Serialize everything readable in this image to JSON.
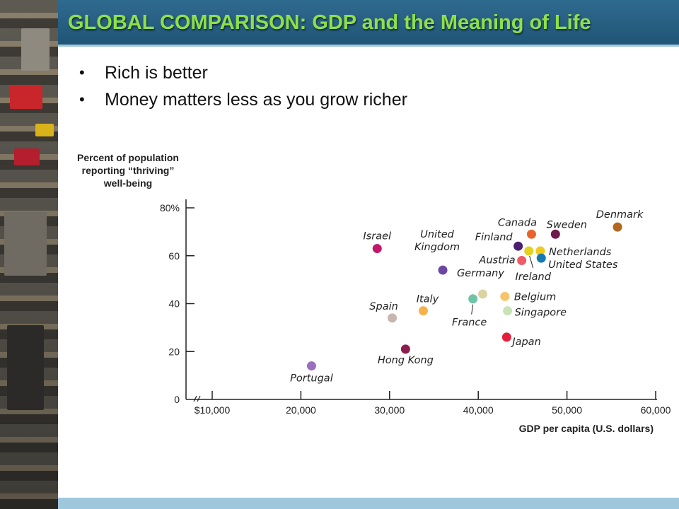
{
  "slide": {
    "title": "GLOBAL COMPARISON: GDP and the Meaning of Life",
    "bullets": [
      "Rich is better",
      "Money matters less as you grow richer"
    ],
    "colors": {
      "title_bar": "#1f5577",
      "title_text": "#8ee04a"
    }
  },
  "chart_data": {
    "type": "scatter",
    "ylabel_lines": [
      "Percent of population",
      "reporting “thriving”",
      "well-being"
    ],
    "xlabel": "GDP per capita (U.S. dollars)",
    "xlim": [
      10000,
      60000
    ],
    "ylim": [
      0,
      80
    ],
    "x_ticks": [
      {
        "value": 10000,
        "label": "$10,000"
      },
      {
        "value": 20000,
        "label": "20,000"
      },
      {
        "value": 30000,
        "label": "30,000"
      },
      {
        "value": 40000,
        "label": "40,000"
      },
      {
        "value": 50000,
        "label": "50,000"
      },
      {
        "value": 60000,
        "label": "60,000"
      }
    ],
    "y_ticks": [
      {
        "value": 0,
        "label": "0"
      },
      {
        "value": 20,
        "label": "20"
      },
      {
        "value": 40,
        "label": "40"
      },
      {
        "value": 60,
        "label": "60"
      },
      {
        "value": 80,
        "label": "80%"
      }
    ],
    "grid": false,
    "axis_break": true,
    "points": [
      {
        "name": "Portugal",
        "x": 21200,
        "y": 14,
        "color": "#9b6fc0"
      },
      {
        "name": "Hong Kong",
        "x": 31800,
        "y": 21,
        "color": "#8b1e4f"
      },
      {
        "name": "Spain",
        "x": 30300,
        "y": 34,
        "color": "#c9b4ae"
      },
      {
        "name": "Italy",
        "x": 33800,
        "y": 37,
        "color": "#f6b24a"
      },
      {
        "name": "Israel",
        "x": 28600,
        "y": 63,
        "color": "#c2186b"
      },
      {
        "name": "United Kingdom",
        "x": 36000,
        "y": 54,
        "color": "#6b47a4"
      },
      {
        "name": "France",
        "x": 39400,
        "y": 42,
        "color": "#6ec4a6"
      },
      {
        "name": "Germany",
        "x": 40500,
        "y": 44,
        "color": "#dcd3a5"
      },
      {
        "name": "Belgium",
        "x": 43000,
        "y": 43,
        "color": "#f6c46a"
      },
      {
        "name": "Singapore",
        "x": 43300,
        "y": 37,
        "color": "#c7e3b7"
      },
      {
        "name": "Japan",
        "x": 43200,
        "y": 26,
        "color": "#e31e3c"
      },
      {
        "name": "Finland",
        "x": 44500,
        "y": 64,
        "color": "#4a1f70"
      },
      {
        "name": "Austria",
        "x": 44900,
        "y": 58,
        "color": "#ee5b66"
      },
      {
        "name": "Canada",
        "x": 46000,
        "y": 69,
        "color": "#e8642d"
      },
      {
        "name": "Ireland",
        "x": 45700,
        "y": 62,
        "color": "#e4d21c"
      },
      {
        "name": "Netherlands",
        "x": 47000,
        "y": 62,
        "color": "#f2c91c"
      },
      {
        "name": "United States",
        "x": 47100,
        "y": 59,
        "color": "#1679b0"
      },
      {
        "name": "Sweden",
        "x": 48700,
        "y": 69,
        "color": "#6e1a4a"
      },
      {
        "name": "Denmark",
        "x": 55700,
        "y": 72,
        "color": "#b3661e"
      }
    ]
  }
}
